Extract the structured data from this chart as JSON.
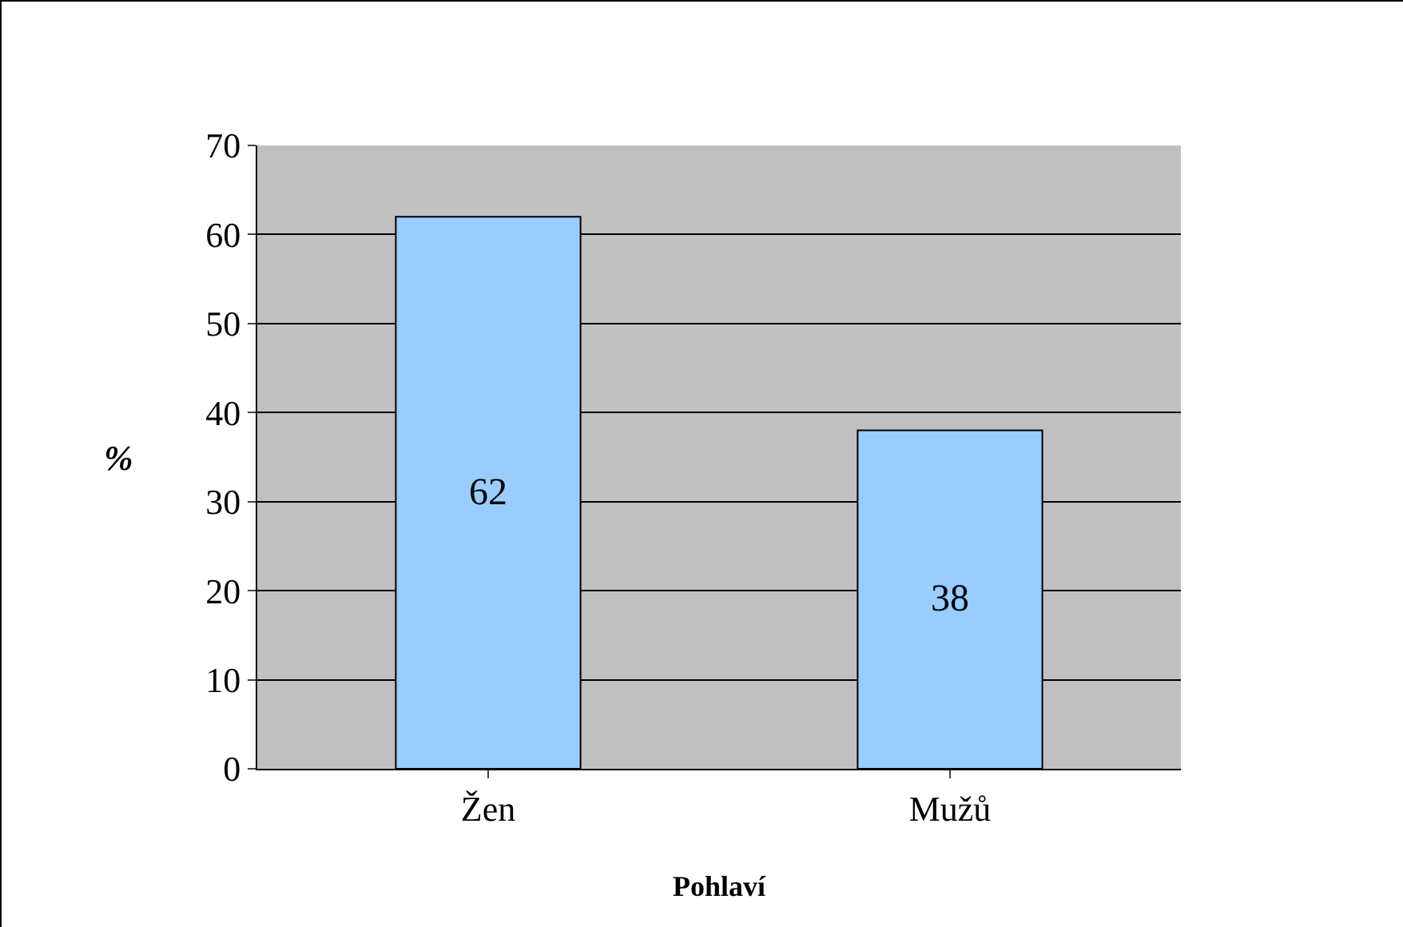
{
  "chart_data": {
    "type": "bar",
    "xlabel": "Pohlaví",
    "ylabel": "%",
    "categories": [
      "Žen",
      "Mužů"
    ],
    "values": [
      62,
      38
    ],
    "color": "#99ccff",
    "ylim": [
      0,
      70
    ],
    "yticks": [
      0,
      10,
      20,
      30,
      40,
      50,
      60,
      70
    ],
    "grid": "y",
    "data_labels": true
  }
}
